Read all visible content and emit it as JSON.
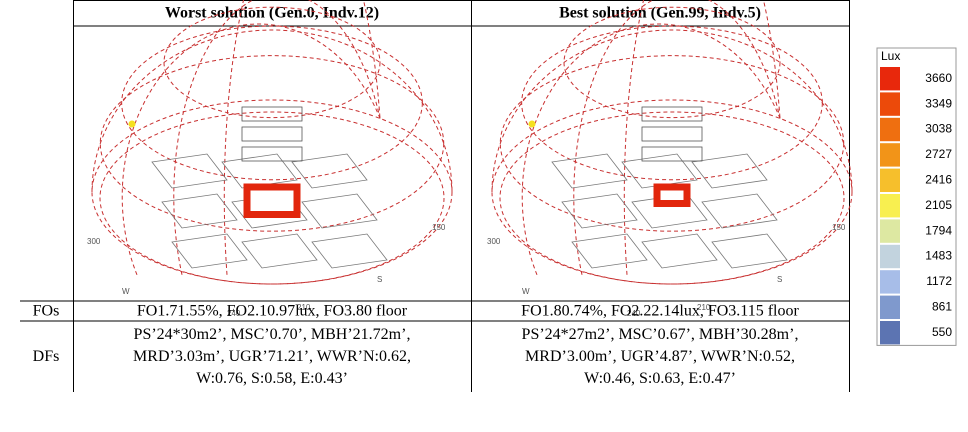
{
  "header": [
    "Worst solution (Gen.0, Indv.12)",
    "Best solution (Gen.99, Indv.5)"
  ],
  "compass": [
    [
      "300",
      "W",
      "240",
      "210",
      "S",
      "150"
    ],
    [
      "300",
      "W",
      "240",
      "210",
      "S",
      "150"
    ]
  ],
  "rows": [
    {
      "label": "FOs",
      "cells": [
        [
          "FO1.71.55%, FO2.10.97lux, FO3.80 floor"
        ],
        [
          "FO1.80.74%, FO2.22.14lux, FO3.115 floor"
        ]
      ]
    },
    {
      "label": "DFs",
      "cells": [
        [
          "PS’24*30m2’, MSC’0.70’, MBH’21.72m’,",
          "MRD’3.03m’, UGR’71.21’, WWR’N:0.62,",
          "W:0.76, S:0.58, E:0.43’"
        ],
        [
          "PS’24*27m2’, MSC’0.67’, MBH’30.28m’,",
          "MRD’3.00m’, UGR’4.87’, WWR’N:0.52,",
          "W:0.46, S:0.63, E:0.47’"
        ]
      ]
    }
  ],
  "legend": {
    "title": "Lux",
    "items": [
      {
        "value": 3660,
        "color": "#e8280c"
      },
      {
        "value": 3349,
        "color": "#ec4a0a"
      },
      {
        "value": 3038,
        "color": "#ef6f10"
      },
      {
        "value": 2727,
        "color": "#f29418"
      },
      {
        "value": 2416,
        "color": "#f6bf2c"
      },
      {
        "value": 2105,
        "color": "#f8ef50"
      },
      {
        "value": 1794,
        "color": "#dde8a2"
      },
      {
        "value": 1483,
        "color": "#c2d3de"
      },
      {
        "value": 1172,
        "color": "#a7bde8"
      },
      {
        "value": 861,
        "color": "#7f99cd"
      },
      {
        "value": 550,
        "color": "#5c74b2"
      }
    ]
  }
}
